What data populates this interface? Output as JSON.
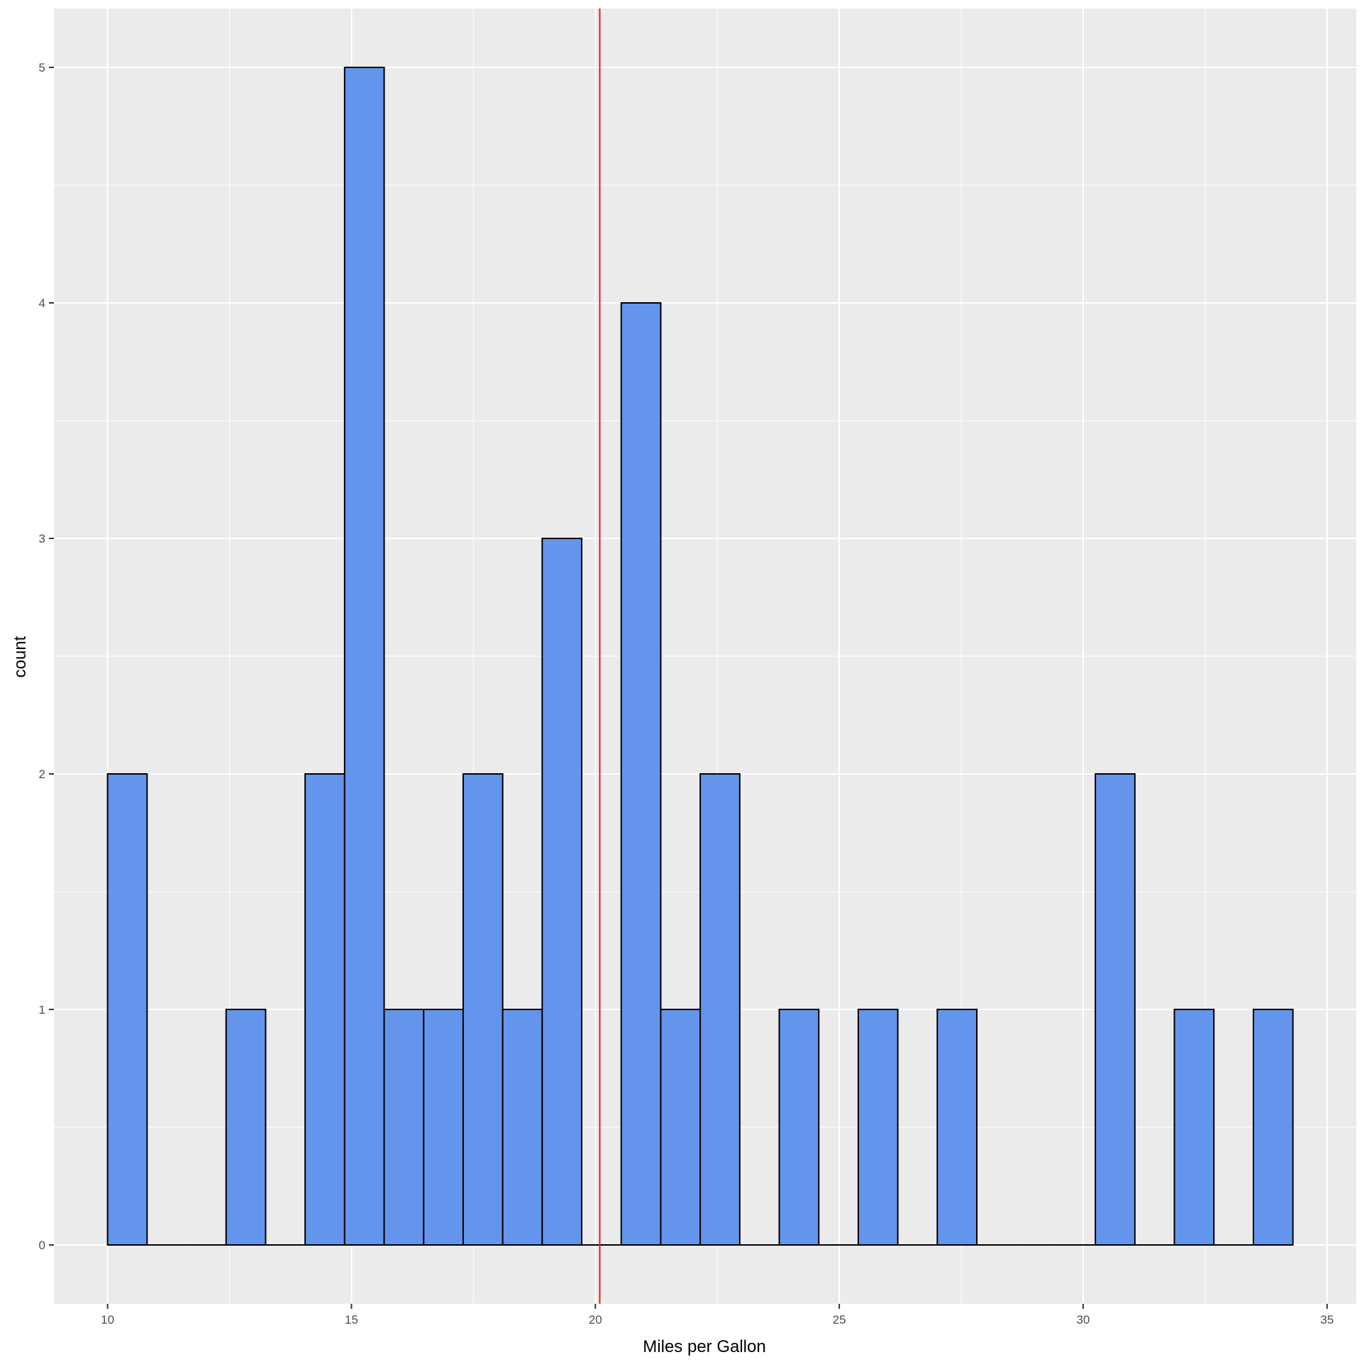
{
  "chart_data": {
    "type": "bar",
    "subtype": "histogram",
    "xlabel": "Miles per Gallon",
    "ylabel": "count",
    "xlim": [
      8.9,
      35.6
    ],
    "ylim": [
      -0.25,
      5.25
    ],
    "x_ticks": [
      10,
      15,
      20,
      25,
      30,
      35
    ],
    "y_ticks": [
      0,
      1,
      2,
      3,
      4,
      5
    ],
    "bin_start": 10.0,
    "bin_width": 0.81,
    "counts": [
      2,
      0,
      0,
      1,
      0,
      2,
      5,
      1,
      1,
      2,
      1,
      3,
      0,
      4,
      1,
      2,
      0,
      1,
      0,
      1,
      0,
      1,
      0,
      0,
      0,
      2,
      0,
      1,
      0,
      1
    ],
    "reference_line": {
      "x": 20.09,
      "color": "#e41a1c"
    },
    "colors": {
      "bar_fill": "#6495ED",
      "bar_outline": "#000000",
      "panel_background": "#EBEBEB",
      "grid": "#ffffff"
    },
    "grid": true,
    "legend": "none"
  }
}
